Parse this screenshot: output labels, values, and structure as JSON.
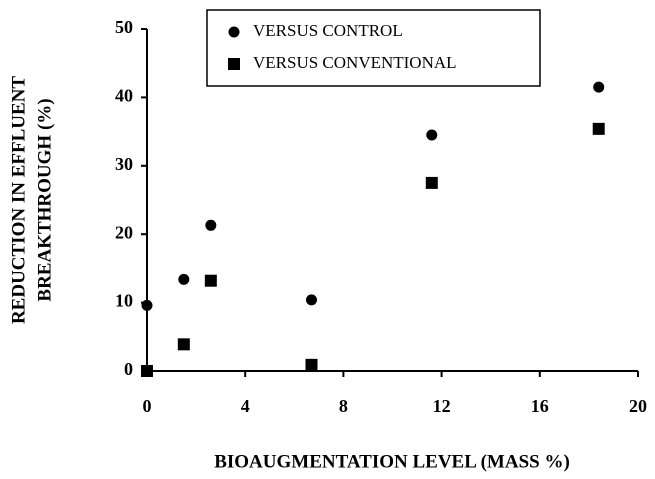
{
  "chart_data": {
    "type": "scatter",
    "x_label": "BIOAUGMENTATION LEVEL (MASS %)",
    "y_label": [
      "REDUCTION IN EFFLUENT",
      "BREAKTHROUGH (%)"
    ],
    "series": [
      {
        "name": "VERSUS CONTROL",
        "color": "#000000",
        "marker": "circle",
        "x": [
          0,
          1.5,
          2.6,
          6.7,
          11.6,
          18.4
        ],
        "values": [
          9.6,
          13.4,
          21.3,
          10.4,
          34.5,
          41.5
        ]
      },
      {
        "name": "VERSUS CONVENTIONAL",
        "color": "#000000",
        "marker": "square",
        "x": [
          0,
          1.5,
          2.6,
          6.7,
          11.6,
          18.4
        ],
        "values": [
          0,
          3.9,
          13.2,
          0.9,
          27.5,
          35.4
        ]
      }
    ],
    "xlim": [
      0,
      20
    ],
    "xticks": [
      0,
      4,
      8,
      12,
      16,
      20
    ],
    "ylim": [
      0,
      50
    ],
    "yticks": [
      0,
      10,
      20,
      30,
      40,
      50
    ],
    "legend": "upper left"
  }
}
